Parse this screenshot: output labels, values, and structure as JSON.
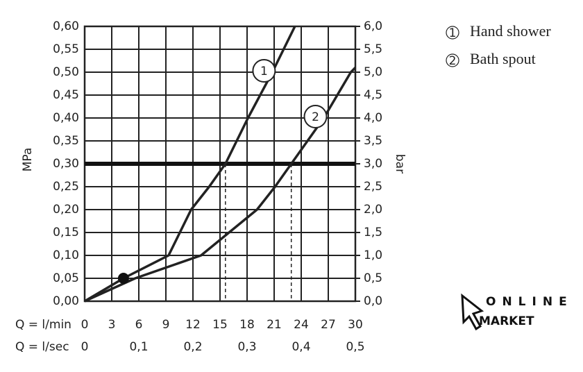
{
  "chart_data": {
    "type": "line",
    "y_label": "MPa",
    "y2_label": "bar",
    "x_label": "Q = l/min",
    "x2_label": "Q = l/sec",
    "xlim": [
      0,
      30
    ],
    "xticks": [
      0,
      3,
      6,
      9,
      12,
      15,
      18,
      21,
      24,
      27,
      30
    ],
    "x2lim": [
      0,
      0.5
    ],
    "x2ticks": [
      0,
      {
        "value": 0.1,
        "label": "0,1"
      },
      {
        "value": 0.2,
        "label": "0,2"
      },
      {
        "value": 0.3,
        "label": "0,3"
      },
      {
        "value": 0.4,
        "label": "0,4"
      },
      {
        "value": 0.5,
        "label": "0,5"
      }
    ],
    "ylim": [
      0,
      0.6
    ],
    "yticks": [
      {
        "value": 0,
        "label": "0,00"
      },
      {
        "value": 0.05,
        "label": "0,05"
      },
      {
        "value": 0.1,
        "label": "0,10"
      },
      {
        "value": 0.15,
        "label": "0,15"
      },
      {
        "value": 0.2,
        "label": "0,20"
      },
      {
        "value": 0.25,
        "label": "0,25"
      },
      {
        "value": 0.3,
        "label": "0,30"
      },
      {
        "value": 0.35,
        "label": "0,35"
      },
      {
        "value": 0.4,
        "label": "0,40"
      },
      {
        "value": 0.45,
        "label": "0,45"
      },
      {
        "value": 0.5,
        "label": "0,50"
      },
      {
        "value": 0.55,
        "label": "0,55"
      },
      {
        "value": 0.6,
        "label": "0,60"
      }
    ],
    "y2lim": [
      0,
      6
    ],
    "y2ticks": [
      {
        "value": 0,
        "label": "0,0"
      },
      {
        "value": 0.5,
        "label": "0,5"
      },
      {
        "value": 1,
        "label": "1,0"
      },
      {
        "value": 1.5,
        "label": "1,5"
      },
      {
        "value": 2,
        "label": "2,0"
      },
      {
        "value": 2.5,
        "label": "2,5"
      },
      {
        "value": 3,
        "label": "3,0"
      },
      {
        "value": 3.5,
        "label": "3,5"
      },
      {
        "value": 4,
        "label": "4,0"
      },
      {
        "value": 4.5,
        "label": "4,5"
      },
      {
        "value": 5,
        "label": "5,0"
      },
      {
        "value": 5.5,
        "label": "5,5"
      },
      {
        "value": 6,
        "label": "6,0"
      }
    ],
    "grid": true,
    "series": [
      {
        "name": "Hand shower",
        "label": "1",
        "color": "#222222",
        "x": [
          0,
          4.3,
          9.3,
          11.8,
          13.8,
          15.6,
          18.1,
          20.8,
          23.3
        ],
        "values": [
          0,
          0.05,
          0.1,
          0.2,
          0.25,
          0.3,
          0.4,
          0.5,
          0.6
        ]
      },
      {
        "name": "Bath spout",
        "label": "2",
        "color": "#222222",
        "x": [
          0,
          5.6,
          12.9,
          16,
          19.1,
          21.1,
          22.9,
          26.5,
          29.5,
          30
        ],
        "values": [
          0,
          0.05,
          0.1,
          0.15,
          0.2,
          0.25,
          0.3,
          0.4,
          0.5,
          0.51
        ]
      }
    ],
    "point": {
      "x": 4.3,
      "y": 0.05
    },
    "reference_line": 0.3,
    "drop_lines": [
      15.6,
      22.9
    ],
    "watermark": [
      "ONLINE",
      "MARKET"
    ]
  }
}
